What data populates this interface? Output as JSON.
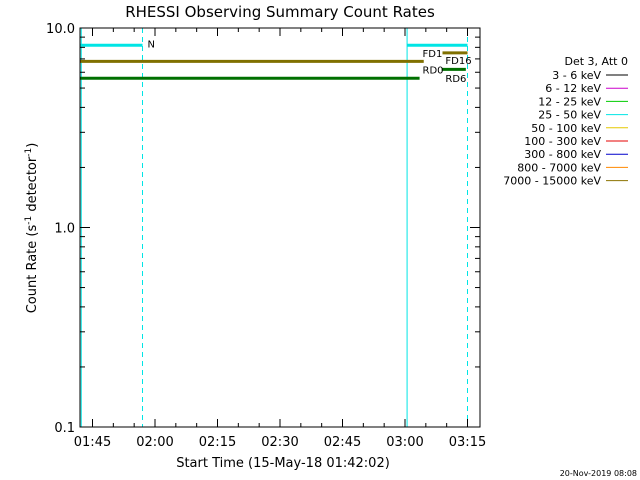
{
  "chart_data": {
    "type": "line",
    "title": "RHESSI Observing Summary Count Rates",
    "xlabel": "Start Time (15-May-18 01:42:02)",
    "ylabel": {
      "pre": "Count Rate (s",
      "sup1": "-1",
      "mid": " detector",
      "sup2": "-1",
      "post": ")"
    },
    "x_unit": "minutes of day",
    "xlim": [
      102,
      198
    ],
    "ylim": [
      0.1,
      10.0
    ],
    "y_scale": "log",
    "x_ticks": [
      {
        "v": 105,
        "label": "01:45"
      },
      {
        "v": 120,
        "label": "02:00"
      },
      {
        "v": 135,
        "label": "02:15"
      },
      {
        "v": 150,
        "label": "02:30"
      },
      {
        "v": 165,
        "label": "02:45"
      },
      {
        "v": 180,
        "label": "03:00"
      },
      {
        "v": 195,
        "label": "03:15"
      }
    ],
    "y_ticks": [
      {
        "v": 0.1,
        "label": "0.1"
      },
      {
        "v": 1.0,
        "label": "1.0"
      },
      {
        "v": 10.0,
        "label": "10.0"
      }
    ],
    "legend": {
      "position": "right",
      "header": "Det 3, Att 0",
      "entries": [
        {
          "label": "3 - 6 keV",
          "color": "#000000"
        },
        {
          "label": "6 - 12 keV",
          "color": "#cc00cc"
        },
        {
          "label": "12 - 25 keV",
          "color": "#00cc00"
        },
        {
          "label": "25 - 50 keV",
          "color": "#00e5e5"
        },
        {
          "label": "50 - 100 keV",
          "color": "#e5c800"
        },
        {
          "label": "100 - 300 keV",
          "color": "#e50000"
        },
        {
          "label": "300 - 800 keV",
          "color": "#0000cc"
        },
        {
          "label": "800 - 7000 keV",
          "color": "#ff8800"
        },
        {
          "label": "7000 - 15000 keV",
          "color": "#8b7300"
        }
      ]
    },
    "flag_lines": [
      {
        "x0": 102,
        "x1": 184.5,
        "y": 6.8,
        "color": "#807000"
      },
      {
        "x0": 102,
        "x1": 183.5,
        "y": 5.6,
        "color": "#007000"
      },
      {
        "x0": 102,
        "x1": 117,
        "y": 8.2,
        "color": "#00e5e5"
      },
      {
        "x0": 180.5,
        "x1": 195,
        "y": 8.2,
        "color": "#00e5e5"
      },
      {
        "x0": 189,
        "x1": 195,
        "y": 7.5,
        "color": "#807000"
      },
      {
        "x0": 188.8,
        "x1": 194.6,
        "y": 6.2,
        "color": "#007000"
      }
    ],
    "flag_labels": [
      {
        "text": "N",
        "x": 118.2,
        "y": 8.35,
        "color": "#00e5e5"
      },
      {
        "text": "FD1",
        "x": 184.2,
        "y": 7.5,
        "color": "#807000"
      },
      {
        "text": "FD16",
        "x": 189.7,
        "y": 6.9,
        "color": "#807000"
      },
      {
        "text": "RD0",
        "x": 184.2,
        "y": 6.2,
        "color": "#007000"
      },
      {
        "text": "RD6",
        "x": 189.7,
        "y": 5.6,
        "color": "#007000"
      }
    ],
    "vlines": [
      {
        "x": 102.3,
        "style": "solid",
        "color": "#00e5e5"
      },
      {
        "x": 117,
        "style": "dashed",
        "color": "#00e5e5"
      },
      {
        "x": 180.5,
        "style": "solid",
        "color": "#00e5e5"
      },
      {
        "x": 195,
        "style": "dashed",
        "color": "#00e5e5"
      }
    ]
  },
  "footer": {
    "timestamp": "20-Nov-2019 08:08"
  }
}
